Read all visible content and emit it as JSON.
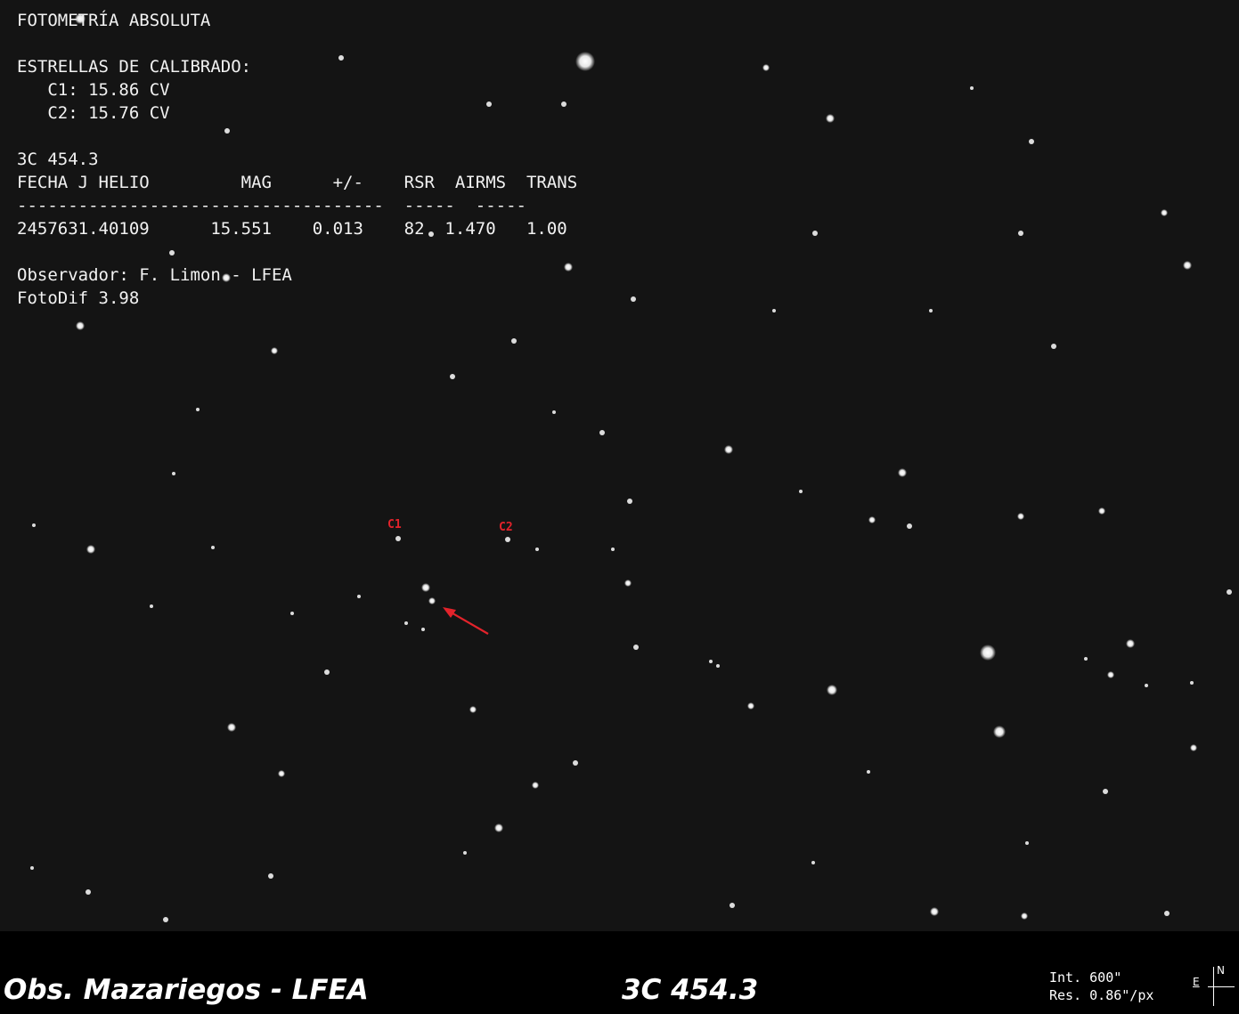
{
  "overlay": {
    "title": "FOTOMETRÍA ABSOLUTA",
    "calib_heading": "ESTRELLAS DE CALIBRADO:",
    "calib_c1": "   C1: 15.86 CV",
    "calib_c2": "   C2: 15.76 CV",
    "object_name": "3C 454.3",
    "table_header": "FECHA J HELIO         MAG      +/-    RSR  AIRMS  TRANS",
    "table_rule": "------------------------------------  -----  -----",
    "table_row": "2457631.40109      15.551    0.013    82  1.470   1.00",
    "observer": "Observador: F. Limon - LFEA",
    "software": "FotoDif 3.98"
  },
  "markers": {
    "c1": "C1",
    "c2": "C2"
  },
  "footer": {
    "observatory": "Obs. Mazariegos - LFEA",
    "target": "3C 454.3",
    "integration": "Int. 600\"",
    "resolution": "Res. 0.86\"/px",
    "compass_n": "N",
    "compass_e": "E"
  },
  "colors": {
    "sky": "#141414",
    "marker": "#e3232b",
    "text": "#f2f2f2"
  }
}
